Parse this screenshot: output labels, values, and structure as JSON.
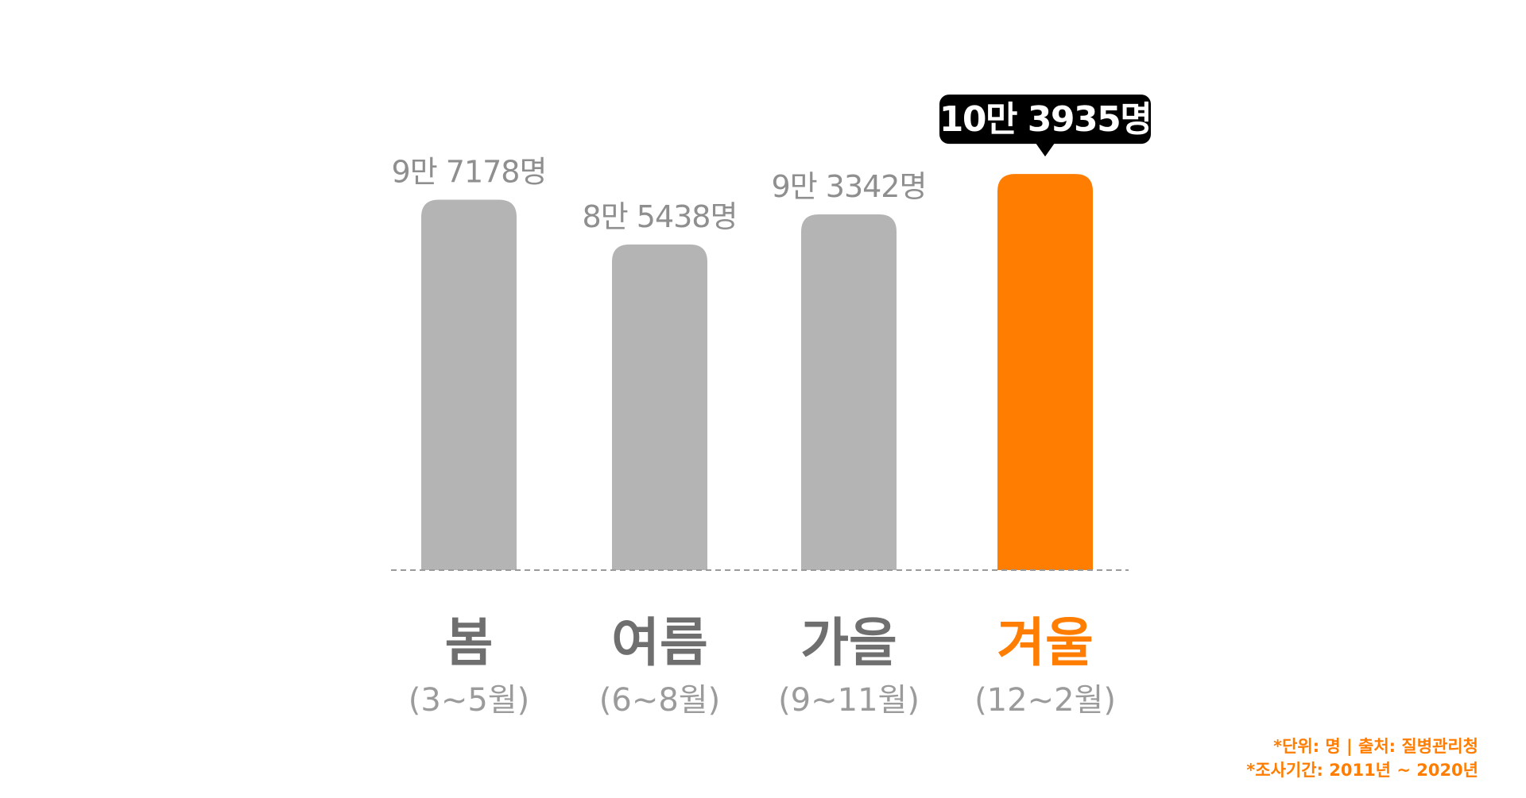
{
  "chart_data": {
    "type": "bar",
    "categories": [
      "봄",
      "여름",
      "가을",
      "겨울"
    ],
    "sub_categories": [
      "(3~5월)",
      "(6~8월)",
      "(9~11월)",
      "(12~2월)"
    ],
    "values": [
      97178,
      85438,
      93342,
      103935
    ],
    "value_labels": [
      "9만 7178명",
      "8만 5438명",
      "9만 3342명",
      "10만 3935명"
    ],
    "highlight_index": 3,
    "ylim": [
      0,
      110000
    ],
    "title": "",
    "xlabel": "",
    "ylabel": "",
    "grid": false,
    "colors": {
      "default": "#b4b4b4",
      "highlight": "#ff7d00",
      "callout": "#000000",
      "baseline": "#9a9a9a"
    }
  },
  "footnotes": {
    "unit_source": "*단위: 명 | 출처: 질병관리청",
    "period": "*조사기간: 2011년 ~ 2020년"
  }
}
